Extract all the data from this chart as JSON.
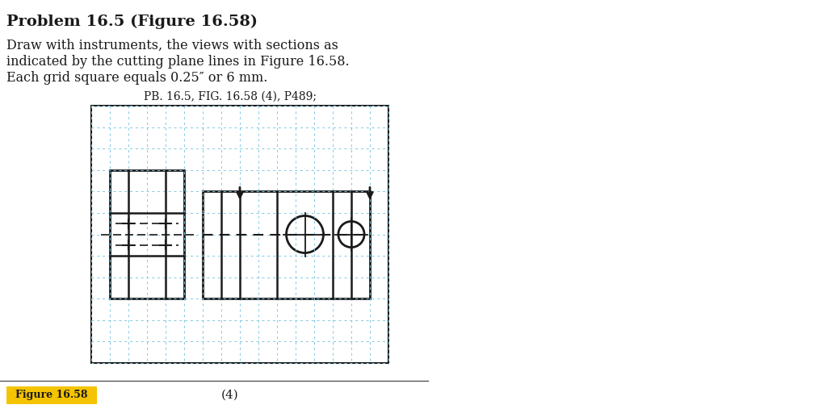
{
  "title": "Problem 16.5 (Figure 16.58)",
  "line1": "Draw with instruments, the views with sections as",
  "line2": "indicated by the cutting plane lines in Figure 16.58.",
  "line3": "Each grid square equals 0.25″ or 6 mm.",
  "subtitle": "PB. 16.5, FIG. 16.58 (4), P489;",
  "figure_label": "Figure 16.58",
  "caption": "(4)",
  "bg_color": "#ffffff",
  "grid_color": "#7ec8e3",
  "drawing_color": "#1a1a1a",
  "figure_label_bg": "#f5c400"
}
